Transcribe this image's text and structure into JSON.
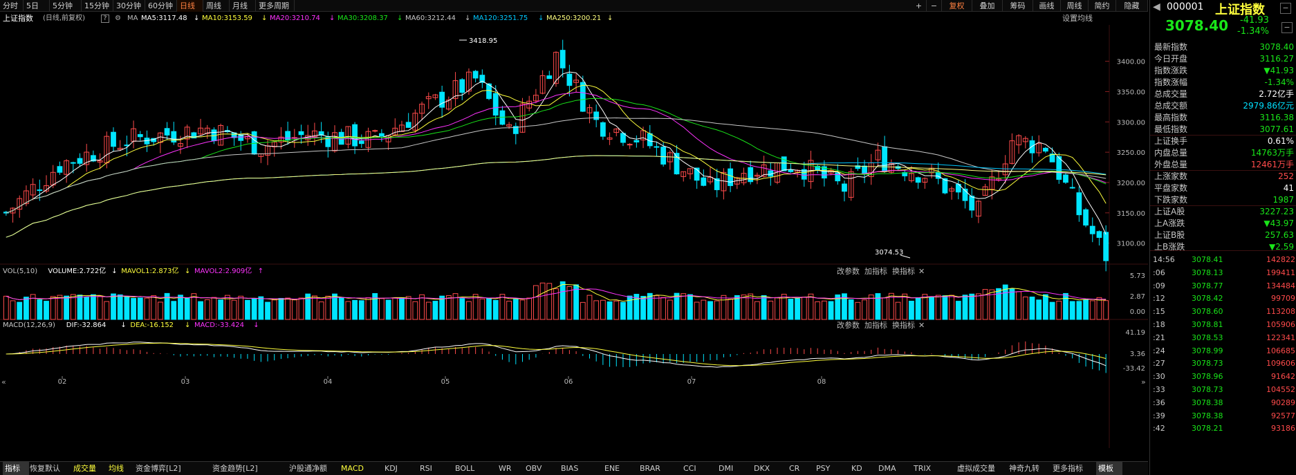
{
  "colors": {
    "up": "#ff4b4b",
    "down": "#00e5ff",
    "ma5": "#ffffff",
    "ma10": "#ffff3c",
    "ma20": "#ff33ff",
    "ma30": "#19e619",
    "ma60": "#c8c8c8",
    "ma120": "#00c8ff",
    "ma250": "#ffff80",
    "axis": "#bbbbbb",
    "bg": "#000000"
  },
  "toolbar": {
    "periods": [
      "分时",
      "5日",
      "5分钟",
      "15分钟",
      "30分钟",
      "60分钟",
      "日线",
      "周线",
      "月线",
      "更多周期"
    ],
    "active_period": "日线",
    "right": [
      "+",
      "−",
      "复权",
      "叠加",
      "筹码",
      "画线",
      "周线",
      "简约",
      "隐藏"
    ]
  },
  "info": {
    "title": "上证指数",
    "subtitle": "(日线,前复权)",
    "help": "?",
    "ma_label": "MA",
    "ma": [
      {
        "text": "MA5:3117.48",
        "arrow": "↓",
        "color": "#ffffff"
      },
      {
        "text": "MA10:3153.59",
        "arrow": "↓",
        "color": "#ffff3c"
      },
      {
        "text": "MA20:3210.74",
        "arrow": "↓",
        "color": "#ff33ff"
      },
      {
        "text": "MA30:3208.37",
        "arrow": "↓",
        "color": "#19e619"
      },
      {
        "text": "MA60:3212.44",
        "arrow": "↓",
        "color": "#c8c8c8"
      },
      {
        "text": "MA120:3251.75",
        "arrow": "↓",
        "color": "#00c8ff"
      },
      {
        "text": "MA250:3200.21",
        "arrow": "↓",
        "color": "#ffff80"
      }
    ],
    "settings": "设置均线"
  },
  "price_axis": [
    "3400.00",
    "3350.00",
    "3300.00",
    "3250.00",
    "3200.00",
    "3150.00",
    "3100.00"
  ],
  "annotations": {
    "high": "3418.95",
    "low": "3074.53"
  },
  "volume": {
    "legend": [
      {
        "text": "VOL(5,10)",
        "color": "#c8c8c8"
      },
      {
        "text": "VOLUME:2.722亿",
        "color": "#ffffff"
      },
      {
        "text": "↓",
        "color": "#ffffff"
      },
      {
        "text": "MAVOL1:2.873亿",
        "color": "#ffff3c"
      },
      {
        "text": "↓",
        "color": "#ffff3c"
      },
      {
        "text": "MAVOL2:2.909亿",
        "color": "#ff33ff"
      },
      {
        "text": "↑",
        "color": "#ff33ff"
      }
    ],
    "axis": [
      "5.73",
      "2.87",
      "0.00"
    ],
    "tools": [
      "改参数",
      "加指标",
      "换指标",
      "✕"
    ]
  },
  "macd": {
    "legend": [
      {
        "text": "MACD(12,26,9)",
        "color": "#c8c8c8"
      },
      {
        "text": "DIF:-32.864",
        "color": "#ffffff"
      },
      {
        "text": "↓",
        "color": "#ffffff"
      },
      {
        "text": "DEA:-16.152",
        "color": "#ffff3c"
      },
      {
        "text": "↓",
        "color": "#ffff3c"
      },
      {
        "text": "MACD:-33.424",
        "color": "#ff33ff"
      },
      {
        "text": "↓",
        "color": "#ff33ff"
      }
    ],
    "axis": [
      "41.19",
      "3.36",
      "-33.42"
    ],
    "tools": [
      "改参数",
      "加指标",
      "换指标",
      "✕"
    ]
  },
  "months": [
    "02",
    "03",
    "04",
    "05",
    "06",
    "07",
    "08"
  ],
  "bottom_tabs": [
    "指标",
    "恢复默认",
    "成交量",
    "均线",
    "资金博弈[L2]",
    "资金趋势[L2]",
    "沪股通净额",
    "MACD",
    "KDJ",
    "RSI",
    "BOLL",
    "WR",
    "OBV",
    "BIAS",
    "ENE",
    "BRAR",
    "CCI",
    "DMI",
    "DKX",
    "CR",
    "PSY",
    "KD",
    "DMA",
    "TRIX",
    "虚拟成交量",
    "神奇九转",
    "更多指标",
    "模板"
  ],
  "panel": {
    "code": "000001",
    "name": "上证指数",
    "price": "3078.40",
    "change": "-41.93",
    "pct": "-1.34%",
    "rows": [
      {
        "label": "最新指数",
        "value": "3078.40",
        "color": "#19e619"
      },
      {
        "label": "今日开盘",
        "value": "3116.27",
        "color": "#19e619"
      },
      {
        "label": "指数涨跌",
        "value": "▼41.93",
        "color": "#19e619"
      },
      {
        "label": "指数涨幅",
        "value": "-1.34%",
        "color": "#19e619"
      },
      {
        "label": "总成交量",
        "value": "2.72亿手",
        "color": "#ffffff"
      },
      {
        "label": "总成交额",
        "value": "2979.86亿元",
        "color": "#00e0ff"
      },
      {
        "label": "最高指数",
        "value": "3116.38",
        "color": "#19e619"
      },
      {
        "label": "最低指数",
        "value": "3077.61",
        "color": "#19e619"
      },
      {
        "label": "上证换手",
        "value": "0.61%",
        "color": "#ffffff"
      },
      {
        "label": "内盘总量",
        "value": "14763万手",
        "color": "#19e619"
      },
      {
        "label": "外盘总量",
        "value": "12461万手",
        "color": "#ff4b4b"
      },
      {
        "label": "上涨家数",
        "value": "252",
        "color": "#ff4b4b"
      },
      {
        "label": "平盘家数",
        "value": "41",
        "color": "#ffffff"
      },
      {
        "label": "下跌家数",
        "value": "1987",
        "color": "#19e619"
      },
      {
        "label": "上证A股",
        "value": "3227.23",
        "color": "#19e619"
      },
      {
        "label": "上A涨跌",
        "value": "▼43.97",
        "color": "#19e619"
      },
      {
        "label": "上证B股",
        "value": "257.63",
        "color": "#19e619"
      },
      {
        "label": "上B涨跌",
        "value": "▼2.59",
        "color": "#19e619"
      }
    ],
    "ticks": [
      {
        "t": "14:56",
        "p": "3078.41",
        "v": "142822"
      },
      {
        "t": ":06",
        "p": "3078.13",
        "v": "199411"
      },
      {
        "t": ":09",
        "p": "3078.77",
        "v": "134484"
      },
      {
        "t": ":12",
        "p": "3078.42",
        "v": "99709"
      },
      {
        "t": ":15",
        "p": "3078.60",
        "v": "113208"
      },
      {
        "t": ":18",
        "p": "3078.81",
        "v": "105906"
      },
      {
        "t": ":21",
        "p": "3078.53",
        "v": "122341"
      },
      {
        "t": ":24",
        "p": "3078.99",
        "v": "106685"
      },
      {
        "t": ":27",
        "p": "3078.73",
        "v": "109606"
      },
      {
        "t": ":30",
        "p": "3078.96",
        "v": "91642"
      },
      {
        "t": ":33",
        "p": "3078.73",
        "v": "104552"
      },
      {
        "t": ":36",
        "p": "3078.38",
        "v": "90289"
      },
      {
        "t": ":39",
        "p": "3078.38",
        "v": "92577"
      },
      {
        "t": ":42",
        "p": "3078.21",
        "v": "93186"
      }
    ]
  }
}
